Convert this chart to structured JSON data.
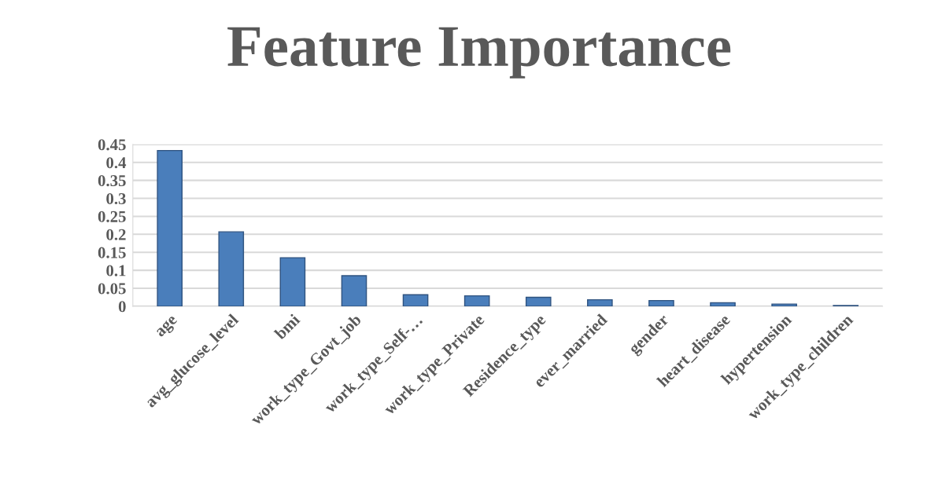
{
  "chart_data": {
    "type": "bar",
    "title": "Feature Importance",
    "categories": [
      "age",
      "avg_glucose_level",
      "bmi",
      "work_type_Govt_job",
      "work_type_Self-…",
      "work_type_Private",
      "Residence_type",
      "ever_married",
      "gender",
      "heart_disease",
      "hypertension",
      "work_type_children"
    ],
    "values": [
      0.433,
      0.207,
      0.135,
      0.085,
      0.032,
      0.029,
      0.025,
      0.018,
      0.016,
      0.01,
      0.006,
      0.002
    ],
    "color": "#4a7ebb",
    "ylim": [
      0,
      0.45
    ],
    "yticks": [
      0,
      0.05,
      0.1,
      0.15,
      0.2,
      0.25,
      0.3,
      0.35,
      0.4,
      0.45
    ],
    "grid": "y"
  }
}
